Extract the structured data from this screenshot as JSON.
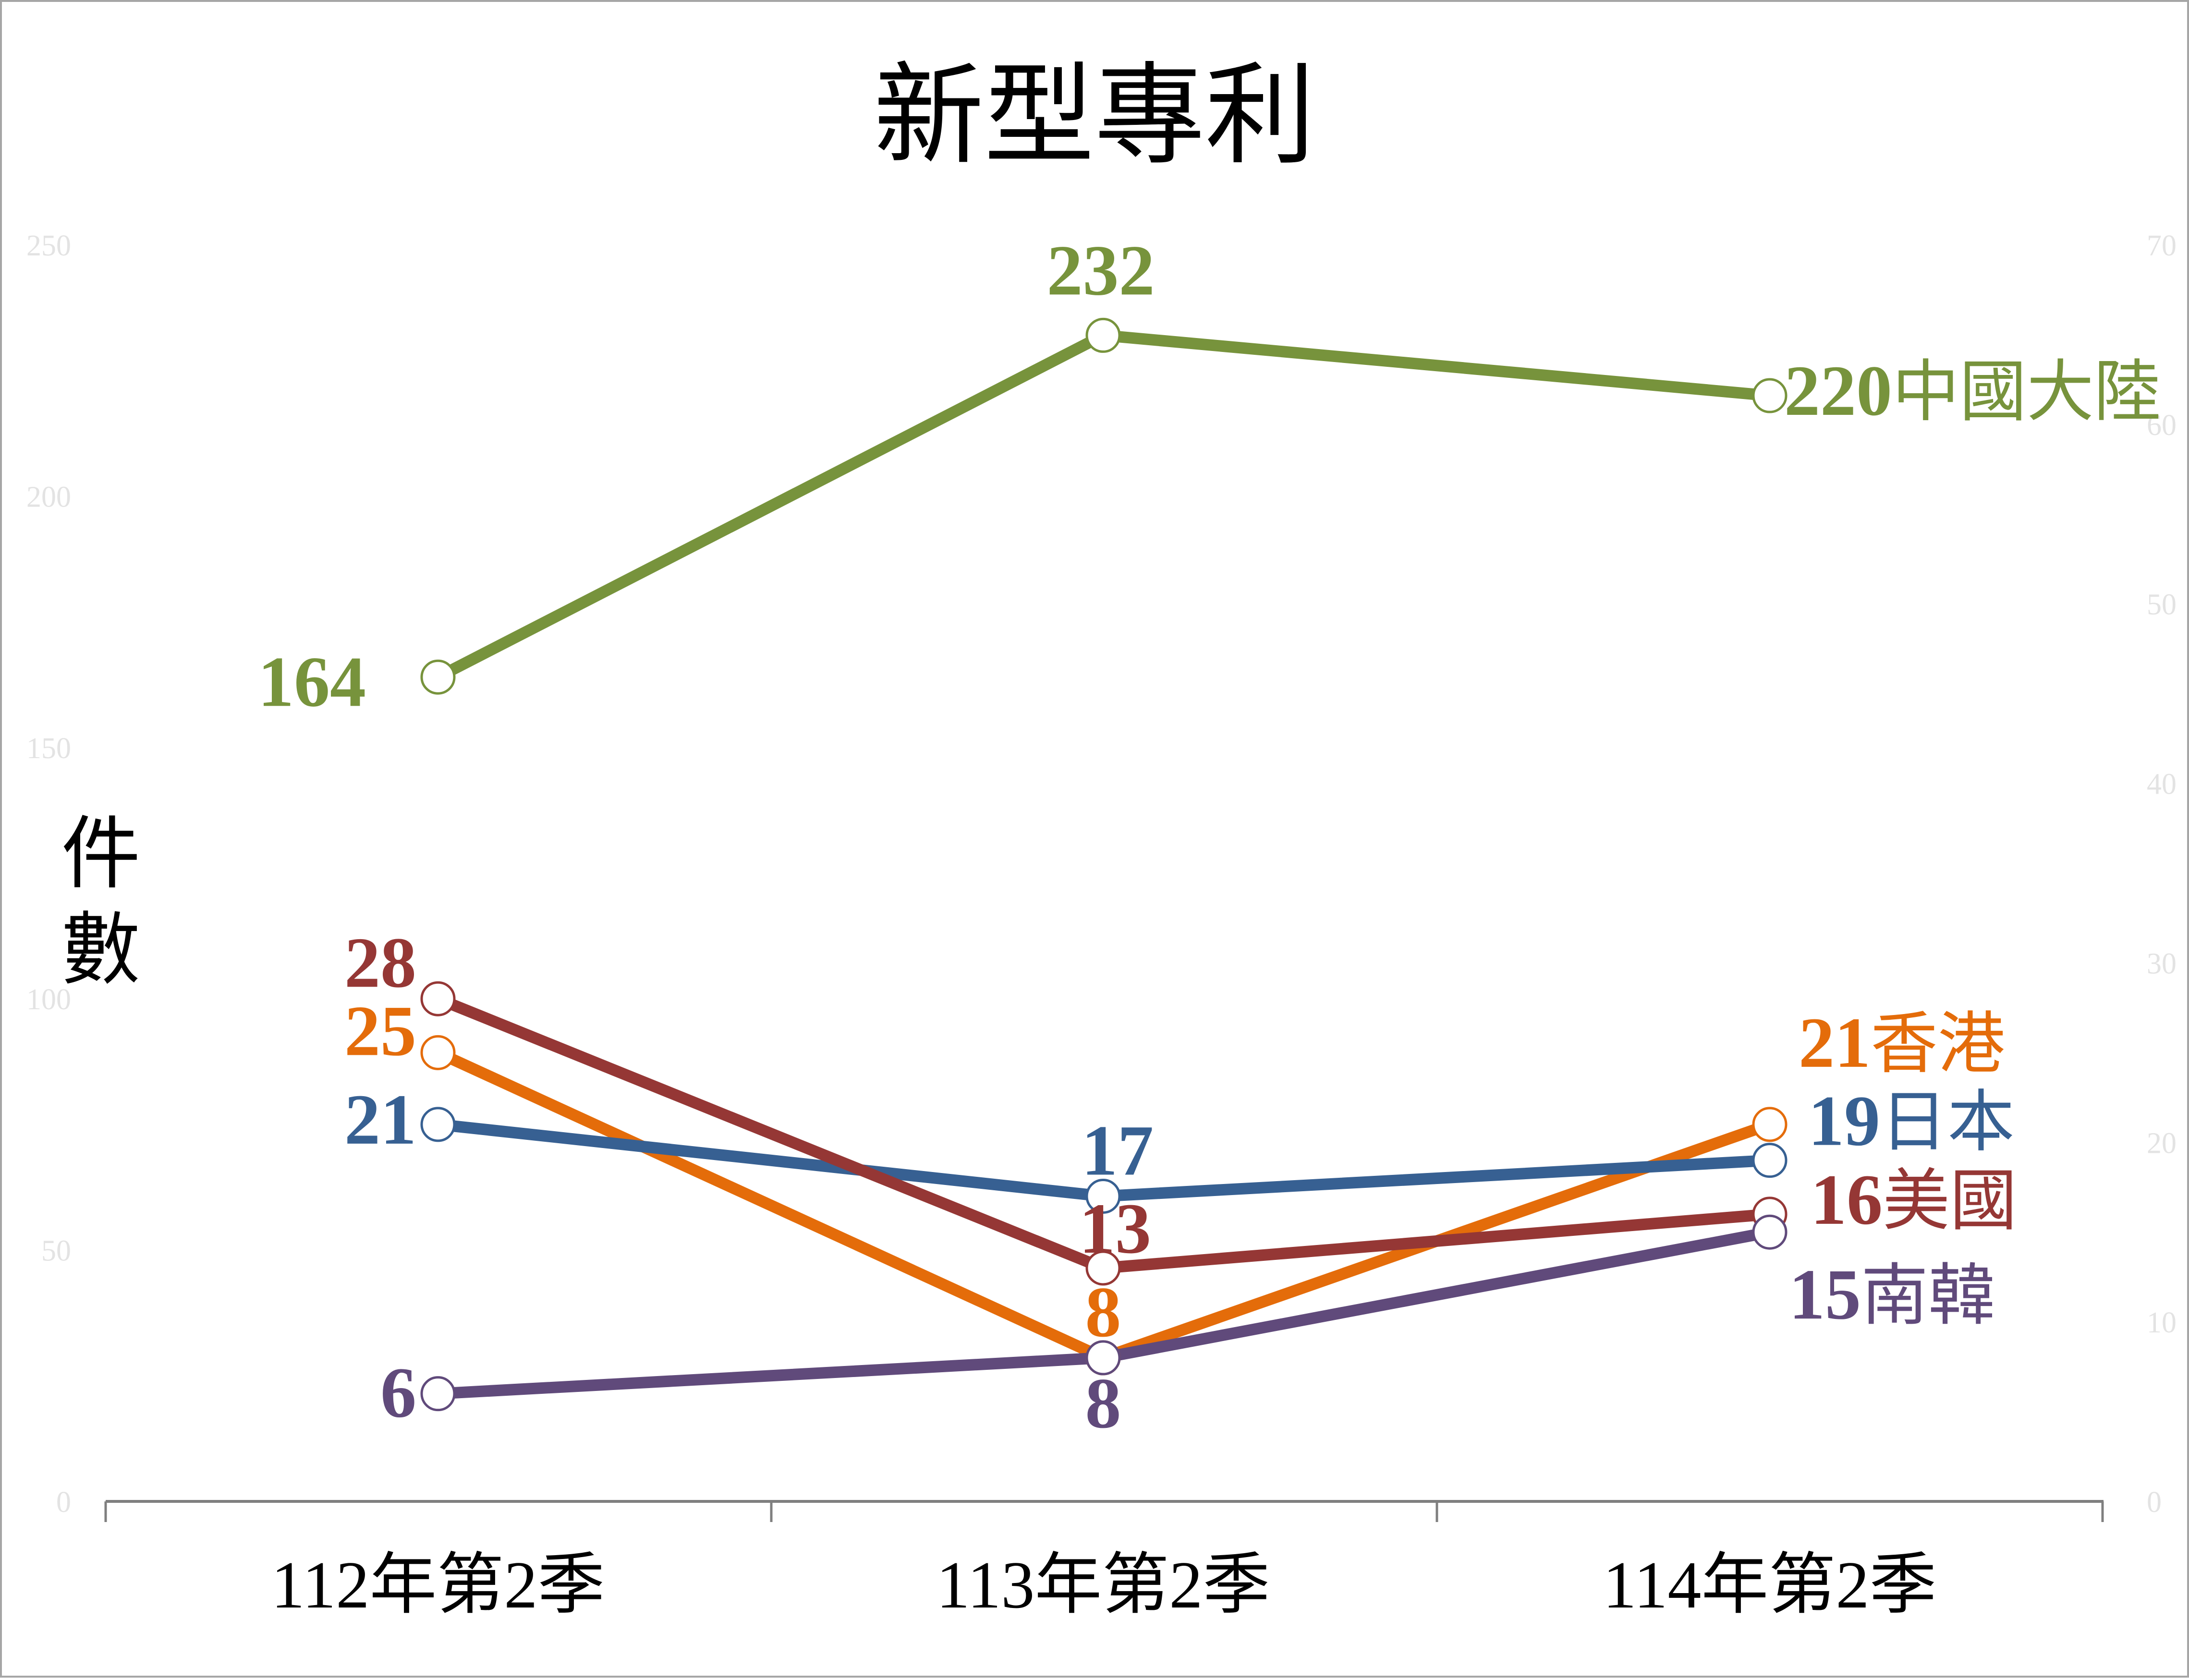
{
  "chart_data": {
    "type": "line",
    "title": "新型專利",
    "ylabel": "件數",
    "categories": [
      "112年第2季",
      "113年第2季",
      "114年第2季"
    ],
    "left_axis": {
      "ticks": [
        0,
        50,
        100,
        150,
        200,
        250
      ],
      "ylim": [
        0,
        250
      ]
    },
    "right_axis": {
      "ticks": [
        0,
        10,
        20,
        30,
        40,
        50,
        60,
        70
      ],
      "ylim": [
        0,
        70
      ]
    },
    "grid": false,
    "series": [
      {
        "name": "中國大陸",
        "axis": "left",
        "color": "#77933C",
        "values": [
          164,
          232,
          220
        ],
        "labels": [
          "164",
          "232",
          "220"
        ]
      },
      {
        "name": "香港",
        "axis": "right",
        "color": "#E46C0A",
        "values": [
          25,
          8,
          21
        ],
        "labels": [
          "25",
          "8",
          "21"
        ]
      },
      {
        "name": "日本",
        "axis": "right",
        "color": "#376092",
        "values": [
          21,
          17,
          19
        ],
        "labels": [
          "21",
          "17",
          "19"
        ]
      },
      {
        "name": "美國",
        "axis": "right",
        "color": "#953735",
        "values": [
          28,
          13,
          16
        ],
        "labels": [
          "28",
          "13",
          "16"
        ]
      },
      {
        "name": "南韓",
        "axis": "right",
        "color": "#604A7B",
        "values": [
          6,
          8,
          15
        ],
        "labels": [
          "6",
          "8",
          "15"
        ]
      }
    ]
  }
}
